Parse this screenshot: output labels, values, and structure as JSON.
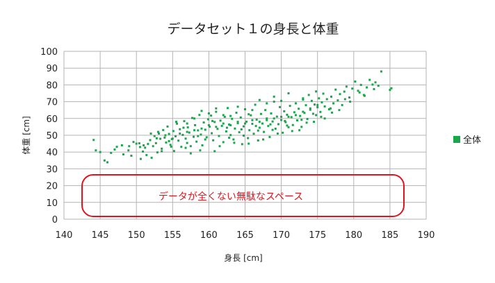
{
  "chart_data": {
    "type": "scatter",
    "title": "データセット１の身長と体重",
    "xlabel": "身長 [cm]",
    "ylabel": "体重 [cm]",
    "xlim": [
      140,
      190
    ],
    "ylim": [
      0,
      100
    ],
    "x_ticks": [
      140,
      145,
      150,
      155,
      160,
      165,
      170,
      175,
      180,
      185,
      190
    ],
    "y_ticks": [
      0,
      10,
      20,
      30,
      40,
      50,
      60,
      70,
      80,
      90,
      100
    ],
    "x_tick_labels": [
      "140",
      "145",
      "150",
      "155",
      "160",
      "165",
      "170",
      "175",
      "180",
      "185",
      "190"
    ],
    "y_tick_labels": [
      "0",
      "10",
      "20",
      "30",
      "40",
      "50",
      "60",
      "70",
      "80",
      "90",
      "100"
    ],
    "grid": true,
    "legend": {
      "placement": "right",
      "entries": [
        {
          "label": "全体",
          "color": "#1aa64a"
        }
      ]
    },
    "series": [
      {
        "name": "全体",
        "color": "#1aa64a",
        "points": [
          [
            144.1,
            47.2
          ],
          [
            144.4,
            41.0
          ],
          [
            145.6,
            35.0
          ],
          [
            146.0,
            33.9
          ],
          [
            147.0,
            41.5
          ],
          [
            147.3,
            43.1
          ],
          [
            148.2,
            38.6
          ],
          [
            148.9,
            41.0
          ],
          [
            149.3,
            37.8
          ],
          [
            149.6,
            46.0
          ],
          [
            150.0,
            45.0
          ],
          [
            150.4,
            45.2
          ],
          [
            150.6,
            35.9
          ],
          [
            150.9,
            40.3
          ],
          [
            151.2,
            42.6
          ],
          [
            151.4,
            38.2
          ],
          [
            151.6,
            44.8
          ],
          [
            151.9,
            47.1
          ],
          [
            152.1,
            36.6
          ],
          [
            152.3,
            43.5
          ],
          [
            152.5,
            49.5
          ],
          [
            152.7,
            45.3
          ],
          [
            152.9,
            39.8
          ],
          [
            153.1,
            51.0
          ],
          [
            153.3,
            47.9
          ],
          [
            153.5,
            42.0
          ],
          [
            153.7,
            53.1
          ],
          [
            153.9,
            48.6
          ],
          [
            154.1,
            45.7
          ],
          [
            154.3,
            55.2
          ],
          [
            154.5,
            50.8
          ],
          [
            154.7,
            44.3
          ],
          [
            154.9,
            47.7
          ],
          [
            155.1,
            52.5
          ],
          [
            155.2,
            40.6
          ],
          [
            155.4,
            49.4
          ],
          [
            155.6,
            56.9
          ],
          [
            155.8,
            46.8
          ],
          [
            156.0,
            53.6
          ],
          [
            156.2,
            43.1
          ],
          [
            156.4,
            50.2
          ],
          [
            156.6,
            58.4
          ],
          [
            156.8,
            48.0
          ],
          [
            157.0,
            45.4
          ],
          [
            157.1,
            54.7
          ],
          [
            157.3,
            51.6
          ],
          [
            157.5,
            39.2
          ],
          [
            157.7,
            60.3
          ],
          [
            157.9,
            49.1
          ],
          [
            158.1,
            56.0
          ],
          [
            158.3,
            46.2
          ],
          [
            158.5,
            52.9
          ],
          [
            158.7,
            62.1
          ],
          [
            158.9,
            50.4
          ],
          [
            159.1,
            44.0
          ],
          [
            159.3,
            57.6
          ],
          [
            159.5,
            53.3
          ],
          [
            159.7,
            48.8
          ],
          [
            159.9,
            59.5
          ],
          [
            160.1,
            55.1
          ],
          [
            160.3,
            61.7
          ],
          [
            160.4,
            51.2
          ],
          [
            160.6,
            47.0
          ],
          [
            160.8,
            57.9
          ],
          [
            161.0,
            64.0
          ],
          [
            161.2,
            53.8
          ],
          [
            161.4,
            49.6
          ],
          [
            161.6,
            58.7
          ],
          [
            161.8,
            55.6
          ],
          [
            162.0,
            45.9
          ],
          [
            162.2,
            61.0
          ],
          [
            162.4,
            52.3
          ],
          [
            162.6,
            66.2
          ],
          [
            162.8,
            56.4
          ],
          [
            163.0,
            50.1
          ],
          [
            163.2,
            59.8
          ],
          [
            163.4,
            47.5
          ],
          [
            163.6,
            54.0
          ],
          [
            163.8,
            63.4
          ],
          [
            164.0,
            57.2
          ],
          [
            164.2,
            51.8
          ],
          [
            164.4,
            60.6
          ],
          [
            164.6,
            44.7
          ],
          [
            164.8,
            55.3
          ],
          [
            165.0,
            65.5
          ],
          [
            165.2,
            58.1
          ],
          [
            165.4,
            48.3
          ],
          [
            165.6,
            53.0
          ],
          [
            165.8,
            61.9
          ],
          [
            166.0,
            56.8
          ],
          [
            166.2,
            50.9
          ],
          [
            166.4,
            68.2
          ],
          [
            166.6,
            59.3
          ],
          [
            166.8,
            46.9
          ],
          [
            167.0,
            54.5
          ],
          [
            167.2,
            62.7
          ],
          [
            167.4,
            57.0
          ],
          [
            167.6,
            52.0
          ],
          [
            167.8,
            65.0
          ],
          [
            168.0,
            60.0
          ],
          [
            168.2,
            55.5
          ],
          [
            168.4,
            49.0
          ],
          [
            168.6,
            63.0
          ],
          [
            168.8,
            58.2
          ],
          [
            169.0,
            70.0
          ],
          [
            169.2,
            53.9
          ],
          [
            169.4,
            61.1
          ],
          [
            169.6,
            56.6
          ],
          [
            169.8,
            66.8
          ],
          [
            170.0,
            59.1
          ],
          [
            170.2,
            51.5
          ],
          [
            170.4,
            64.3
          ],
          [
            170.6,
            57.8
          ],
          [
            170.8,
            62.2
          ],
          [
            171.0,
            54.8
          ],
          [
            171.2,
            67.5
          ],
          [
            171.4,
            60.8
          ],
          [
            171.6,
            56.1
          ],
          [
            171.8,
            63.7
          ],
          [
            172.0,
            69.0
          ],
          [
            172.2,
            58.9
          ],
          [
            172.4,
            65.8
          ],
          [
            172.6,
            61.5
          ],
          [
            172.8,
            55.0
          ],
          [
            173.0,
            71.2
          ],
          [
            173.2,
            63.3
          ],
          [
            173.4,
            67.9
          ],
          [
            173.6,
            59.7
          ],
          [
            173.8,
            74.0
          ],
          [
            174.0,
            65.2
          ],
          [
            174.2,
            70.5
          ],
          [
            174.4,
            62.8
          ],
          [
            174.6,
            68.3
          ],
          [
            174.8,
            76.1
          ],
          [
            175.0,
            66.7
          ],
          [
            175.2,
            72.0
          ],
          [
            175.4,
            63.9
          ],
          [
            175.6,
            69.6
          ],
          [
            175.8,
            74.8
          ],
          [
            176.0,
            67.2
          ],
          [
            176.3,
            71.5
          ],
          [
            176.6,
            65.5
          ],
          [
            176.9,
            73.0
          ],
          [
            177.2,
            69.0
          ],
          [
            177.5,
            77.2
          ],
          [
            177.8,
            70.8
          ],
          [
            178.1,
            74.5
          ],
          [
            178.4,
            68.0
          ],
          [
            178.7,
            76.0
          ],
          [
            179.0,
            79.0
          ],
          [
            179.4,
            72.5
          ],
          [
            179.8,
            77.8
          ],
          [
            180.2,
            82.0
          ],
          [
            180.6,
            76.5
          ],
          [
            181.0,
            80.0
          ],
          [
            181.4,
            74.0
          ],
          [
            181.8,
            78.5
          ],
          [
            182.2,
            83.0
          ],
          [
            182.6,
            80.2
          ],
          [
            183.0,
            81.5
          ],
          [
            183.4,
            79.5
          ],
          [
            183.8,
            88.0
          ],
          [
            185.0,
            77.0
          ],
          [
            185.2,
            78.0
          ],
          [
            151.0,
            44.0
          ],
          [
            152.0,
            51.0
          ],
          [
            153.0,
            52.0
          ],
          [
            154.0,
            50.0
          ],
          [
            155.0,
            48.0
          ],
          [
            156.0,
            51.0
          ],
          [
            157.0,
            52.0
          ],
          [
            158.0,
            53.0
          ],
          [
            159.0,
            54.0
          ],
          [
            160.0,
            56.0
          ],
          [
            161.0,
            55.0
          ],
          [
            162.0,
            57.0
          ],
          [
            163.0,
            56.0
          ],
          [
            164.0,
            58.0
          ],
          [
            165.0,
            57.0
          ],
          [
            166.0,
            59.0
          ],
          [
            167.0,
            58.0
          ],
          [
            168.0,
            59.0
          ],
          [
            169.0,
            60.0
          ],
          [
            170.0,
            61.0
          ],
          [
            171.0,
            61.0
          ],
          [
            172.0,
            62.0
          ],
          [
            173.0,
            64.0
          ],
          [
            174.0,
            66.0
          ],
          [
            175.0,
            68.0
          ],
          [
            160.5,
            58.5
          ],
          [
            162.5,
            54.5
          ],
          [
            164.5,
            53.5
          ],
          [
            166.5,
            55.5
          ],
          [
            168.5,
            56.5
          ],
          [
            170.5,
            58.5
          ],
          [
            156.5,
            54.5
          ],
          [
            158.5,
            49.5
          ],
          [
            154.5,
            46.5
          ],
          [
            153.5,
            40.5
          ],
          [
            150.5,
            43.0
          ],
          [
            157.5,
            43.5
          ],
          [
            159.5,
            47.5
          ],
          [
            161.5,
            43.5
          ],
          [
            163.5,
            45.5
          ],
          [
            165.5,
            45.0
          ],
          [
            167.5,
            47.5
          ],
          [
            169.5,
            51.0
          ],
          [
            171.5,
            52.5
          ],
          [
            173.5,
            57.5
          ],
          [
            175.5,
            61.0
          ],
          [
            177.0,
            63.5
          ],
          [
            178.0,
            65.0
          ],
          [
            179.5,
            70.0
          ],
          [
            181.5,
            73.5
          ],
          [
            176.0,
            60.0
          ],
          [
            174.5,
            58.0
          ],
          [
            172.5,
            53.0
          ],
          [
            166.0,
            65.0
          ],
          [
            164.0,
            67.0
          ],
          [
            162.0,
            62.0
          ],
          [
            160.0,
            63.0
          ],
          [
            158.0,
            60.0
          ],
          [
            155.5,
            58.0
          ],
          [
            157.0,
            57.0
          ],
          [
            168.0,
            69.0
          ],
          [
            170.0,
            70.5
          ],
          [
            167.0,
            71.0
          ],
          [
            165.5,
            62.5
          ],
          [
            163.0,
            61.5
          ],
          [
            161.0,
            66.0
          ],
          [
            159.0,
            64.5
          ],
          [
            169.0,
            73.0
          ],
          [
            171.0,
            75.0
          ],
          [
            173.0,
            72.0
          ],
          [
            152.8,
            48.2
          ],
          [
            154.8,
            43.2
          ],
          [
            156.8,
            42.5
          ],
          [
            158.8,
            41.0
          ],
          [
            160.8,
            40.5
          ],
          [
            162.8,
            48.5
          ],
          [
            164.8,
            49.8
          ],
          [
            166.8,
            52.8
          ],
          [
            168.8,
            53.2
          ],
          [
            170.8,
            55.8
          ],
          [
            172.8,
            59.2
          ],
          [
            174.8,
            62.0
          ],
          [
            176.8,
            66.0
          ],
          [
            178.8,
            71.5
          ],
          [
            180.8,
            75.5
          ],
          [
            182.8,
            77.5
          ],
          [
            149.0,
            43.5
          ],
          [
            148.0,
            44.0
          ],
          [
            146.5,
            39.5
          ],
          [
            145.0,
            40.0
          ]
        ]
      }
    ],
    "annotation": {
      "text": "データが全くない無駄なスペース",
      "color": "#e0141e"
    }
  }
}
